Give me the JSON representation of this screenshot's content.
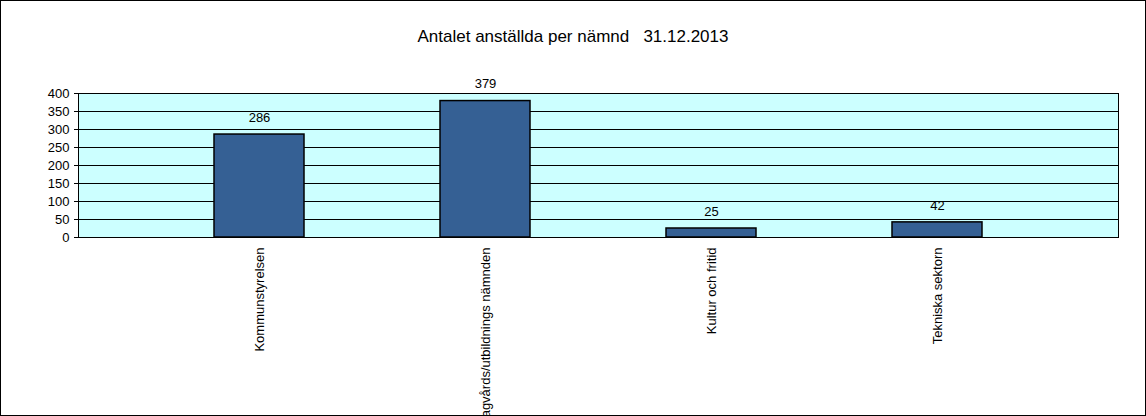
{
  "chart_data": {
    "type": "bar",
    "title": "Antalet anställda per nämnd   31.12.2013",
    "categories": [
      "Kommunstyrelsen",
      "Dagvårds/utbildnings nämnden",
      "Kultur och fritid",
      "Tekniska sektorn"
    ],
    "values": [
      286,
      379,
      25,
      42
    ],
    "color": "#356094",
    "ylim": [
      0,
      400
    ],
    "yticks": [
      0,
      50,
      100,
      150,
      200,
      250,
      300,
      350,
      400
    ],
    "grid": true,
    "data_labels": true
  }
}
